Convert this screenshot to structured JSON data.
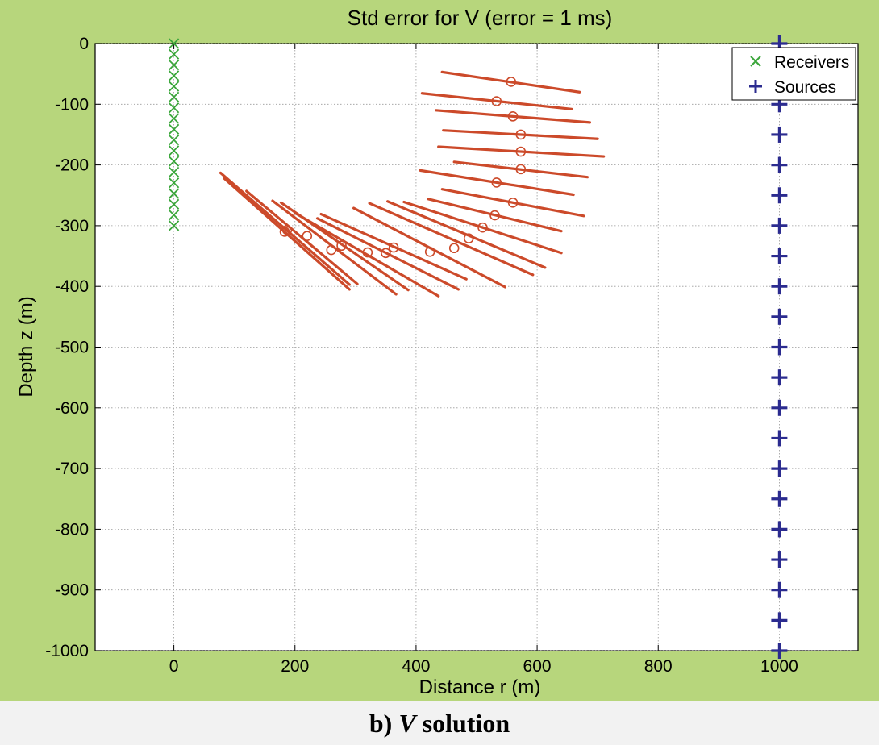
{
  "caption": {
    "prefix": "b)",
    "variable": "V",
    "suffix": "solution"
  },
  "chart_data": {
    "type": "scatter",
    "title": "Std error for V (error = 1 ms)",
    "xlabel": "Distance r (m)",
    "ylabel": "Depth z (m)",
    "xlim": [
      -130,
      1130
    ],
    "ylim": [
      -1000,
      0
    ],
    "xticks": [
      0,
      200,
      400,
      600,
      800,
      1000
    ],
    "yticks": [
      0,
      -100,
      -200,
      -300,
      -400,
      -500,
      -600,
      -700,
      -800,
      -900,
      -1000
    ],
    "grid": true,
    "legend_position": "top-right",
    "colors": {
      "receivers": "#3aa63a",
      "sources": "#2b2b8f",
      "error_bars": "#cc4a2a",
      "figure_bg": "#b7d67c",
      "axes_bg": "#ffffff"
    },
    "series": [
      {
        "name": "Receivers",
        "marker": "x",
        "points": [
          [
            0,
            0
          ],
          [
            0,
            -17.6
          ],
          [
            0,
            -35.3
          ],
          [
            0,
            -52.9
          ],
          [
            0,
            -70.6
          ],
          [
            0,
            -88.2
          ],
          [
            0,
            -105.9
          ],
          [
            0,
            -123.5
          ],
          [
            0,
            -141.2
          ],
          [
            0,
            -158.8
          ],
          [
            0,
            -176.5
          ],
          [
            0,
            -194.1
          ],
          [
            0,
            -211.8
          ],
          [
            0,
            -229.4
          ],
          [
            0,
            -247.1
          ],
          [
            0,
            -264.7
          ],
          [
            0,
            -282.4
          ],
          [
            0,
            -300
          ]
        ]
      },
      {
        "name": "Sources",
        "marker": "+",
        "points": [
          [
            1000,
            0
          ],
          [
            1000,
            -50
          ],
          [
            1000,
            -100
          ],
          [
            1000,
            -150
          ],
          [
            1000,
            -200
          ],
          [
            1000,
            -250
          ],
          [
            1000,
            -300
          ],
          [
            1000,
            -350
          ],
          [
            1000,
            -400
          ],
          [
            1000,
            -450
          ],
          [
            1000,
            -500
          ],
          [
            1000,
            -550
          ],
          [
            1000,
            -600
          ],
          [
            1000,
            -650
          ],
          [
            1000,
            -700
          ],
          [
            1000,
            -750
          ],
          [
            1000,
            -800
          ],
          [
            1000,
            -850
          ],
          [
            1000,
            -900
          ],
          [
            1000,
            -950
          ],
          [
            1000,
            -1000
          ]
        ]
      }
    ],
    "error_estimates": [
      {
        "center": [
          557,
          -63
        ],
        "line": [
          [
            443,
            -47
          ],
          [
            670,
            -80
          ]
        ]
      },
      {
        "center": [
          533,
          -95
        ],
        "line": [
          [
            410,
            -82
          ],
          [
            657,
            -108
          ]
        ]
      },
      {
        "center": [
          560,
          -120
        ],
        "line": [
          [
            433,
            -110
          ],
          [
            687,
            -130
          ]
        ]
      },
      {
        "center": [
          573,
          -150
        ],
        "line": [
          [
            445,
            -143
          ],
          [
            700,
            -157
          ]
        ]
      },
      {
        "center": [
          573,
          -178
        ],
        "line": [
          [
            437,
            -170
          ],
          [
            710,
            -186
          ]
        ]
      },
      {
        "center": [
          573,
          -207
        ],
        "line": [
          [
            463,
            -195
          ],
          [
            683,
            -220
          ]
        ]
      },
      {
        "center": [
          533,
          -229
        ],
        "line": [
          [
            407,
            -209
          ],
          [
            660,
            -249
          ]
        ]
      },
      {
        "center": [
          560,
          -262
        ],
        "line": [
          [
            443,
            -240
          ],
          [
            677,
            -284
          ]
        ]
      },
      {
        "center": [
          530,
          -283
        ],
        "line": [
          [
            420,
            -256
          ],
          [
            640,
            -309
          ]
        ]
      },
      {
        "center": [
          510,
          -303
        ],
        "line": [
          [
            380,
            -261
          ],
          [
            640,
            -345
          ]
        ]
      },
      {
        "center": [
          487,
          -321
        ],
        "line": [
          [
            353,
            -260
          ],
          [
            613,
            -369
          ]
        ]
      },
      {
        "center": [
          463,
          -337
        ],
        "line": [
          [
            323,
            -263
          ],
          [
            593,
            -381
          ]
        ]
      },
      {
        "center": [
          423,
          -343
        ],
        "line": [
          [
            297,
            -271
          ],
          [
            547,
            -401
          ]
        ]
      },
      {
        "center": [
          363,
          -336
        ],
        "line": [
          [
            243,
            -281
          ],
          [
            483,
            -388
          ]
        ]
      },
      {
        "center": [
          350,
          -345
        ],
        "line": [
          [
            237,
            -288
          ],
          [
            470,
            -405
          ]
        ]
      },
      {
        "center": [
          320,
          -344
        ],
        "line": [
          [
            200,
            -279
          ],
          [
            437,
            -416
          ]
        ]
      },
      {
        "center": [
          277,
          -333
        ],
        "line": [
          [
            177,
            -262
          ],
          [
            387,
            -406
          ]
        ]
      },
      {
        "center": [
          260,
          -340
        ],
        "line": [
          [
            163,
            -259
          ],
          [
            367,
            -413
          ]
        ]
      },
      {
        "center": [
          220,
          -317
        ],
        "line": [
          [
            120,
            -243
          ],
          [
            303,
            -396
          ]
        ]
      },
      {
        "center": [
          183,
          -310
        ],
        "line": [
          [
            77,
            -213
          ],
          [
            290,
            -397
          ]
        ]
      },
      {
        "center": [
          187,
          -307
        ],
        "line": [
          [
            83,
            -222
          ],
          [
            290,
            -405
          ]
        ]
      }
    ]
  }
}
